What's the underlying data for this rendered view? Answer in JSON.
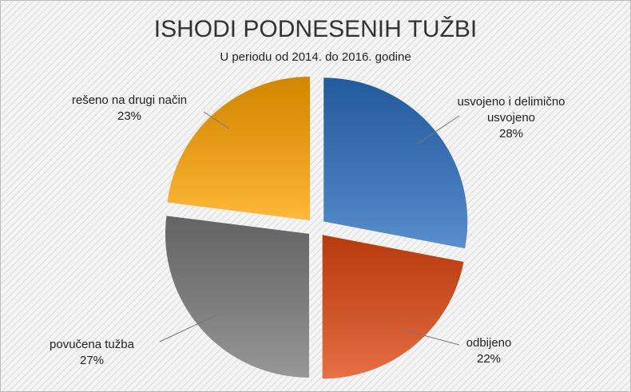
{
  "chart_data": {
    "type": "pie",
    "title": "ISHODI PODNESENIH TUŽBI",
    "subtitle": "U periodu od 2014. do 2016. godine",
    "categories": [
      "usvojeno i delimično usvojeno",
      "odbijeno",
      "povučena tužba",
      "rešeno na drugi način"
    ],
    "values": [
      28,
      22,
      27,
      23
    ],
    "value_labels": [
      "28%",
      "22%",
      "27%",
      "23%"
    ],
    "colors": [
      "#2a6fc0",
      "#e0480f",
      "#7a7a7a",
      "#ffa500"
    ]
  }
}
